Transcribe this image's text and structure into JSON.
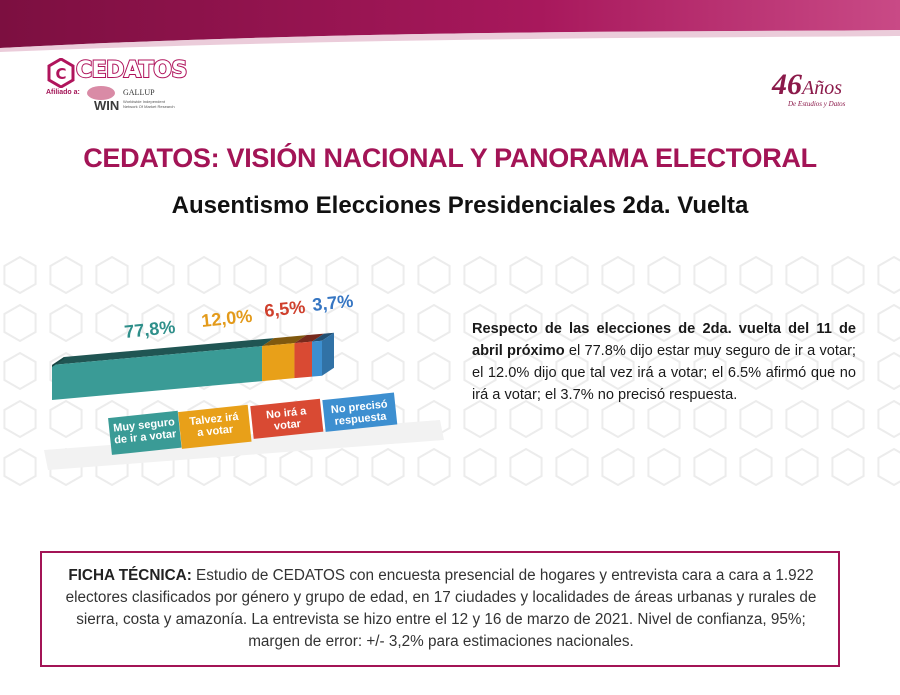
{
  "brand": {
    "logo_text": "CEDATOS",
    "affiliate_label": "Afiliado a:",
    "win_label": "WIN",
    "gallup_label": "GALLUP",
    "win_note": "Worldwide Independent Network Of Market Research",
    "years_number": "46",
    "years_word": "Años",
    "years_sub": "De Estudios y Datos"
  },
  "header": {
    "title": "CEDATOS: VISIÓN NACIONAL Y PANORAMA ELECTORAL",
    "subtitle": "Ausentismo Elecciones Presidenciales 2da. Vuelta"
  },
  "chart_data": {
    "type": "bar",
    "stacked": true,
    "orientation": "horizontal",
    "categories": [
      "Muy seguro de ir a votar",
      "Talvez irá a votar",
      "No irá a votar",
      "No precisó respuesta"
    ],
    "values": [
      77.8,
      12.0,
      6.5,
      3.7
    ],
    "value_labels": [
      "77,8%",
      "12,0%",
      "6,5%",
      "3,7%"
    ],
    "legend_lines": [
      [
        "Muy seguro",
        "de ir a votar"
      ],
      [
        "Talvez irá",
        "a votar"
      ],
      [
        "No irá a",
        "votar"
      ],
      [
        "No precisó",
        "respuesta"
      ]
    ],
    "colors": [
      "#3a9b96",
      "#e8a019",
      "#d94a33",
      "#3d8fd0"
    ],
    "label_colors": [
      "#2e8f8a",
      "#e39a1a",
      "#cf3f2c",
      "#3575c2"
    ],
    "xlim": [
      0,
      100
    ]
  },
  "description": {
    "lead_bold": "Respecto de las elecciones de 2da. vuelta del 11 de abril próximo",
    "body": " el 77.8% dijo estar muy seguro de ir a votar; el 12.0% dijo que tal vez irá a votar; el 6.5% afirmó que no irá a votar; el 3.7% no precisó respuesta."
  },
  "ficha": {
    "label": "FICHA TÉCNICA:",
    "text": " Estudio de CEDATOS con encuesta presencial de hogares y entrevista cara a cara a 1.922 electores clasificados por género y grupo de edad, en 17 ciudades y localidades de áreas urbanas y rurales de sierra, costa y amazonía. La entrevista se hizo entre el 12 y 16 de marzo de 2021. Nivel de confianza, 95%; margen de error: +/- 3,2% para estimaciones nacionales."
  },
  "colors": {
    "brand": "#a31456",
    "band_dark": "#8a1347",
    "band_light": "#c33a78"
  }
}
